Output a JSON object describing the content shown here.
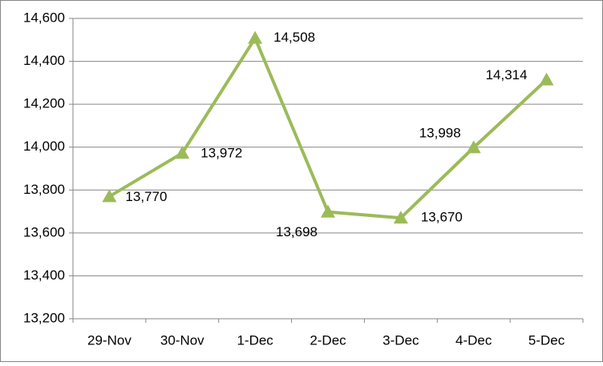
{
  "chart_data": {
    "type": "line",
    "categories": [
      "29-Nov",
      "30-Nov",
      "1-Dec",
      "2-Dec",
      "3-Dec",
      "4-Dec",
      "5-Dec"
    ],
    "series": [
      {
        "color": "#9bbb59",
        "values": [
          13770,
          13972,
          14508,
          13698,
          13670,
          13998,
          14314
        ],
        "value_labels": [
          "13,770",
          "13,972",
          "14,508",
          "13,698",
          "13,670",
          "13,998",
          "14,314"
        ]
      }
    ],
    "ylim": [
      13200,
      14600
    ],
    "yticks": [
      {
        "value": 13200,
        "label": "13,200"
      },
      {
        "value": 13400,
        "label": "13,400"
      },
      {
        "value": 13600,
        "label": "13,600"
      },
      {
        "value": 13800,
        "label": "13,800"
      },
      {
        "value": 14000,
        "label": "14,000"
      },
      {
        "value": 14200,
        "label": "14,200"
      },
      {
        "value": 14400,
        "label": "14,400"
      },
      {
        "value": 14600,
        "label": "14,600"
      }
    ],
    "grid": true
  }
}
